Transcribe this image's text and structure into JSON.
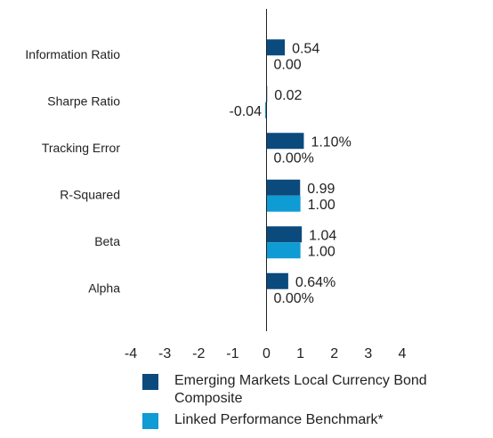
{
  "chart_data": {
    "type": "barh",
    "categories": [
      "Information Ratio",
      "Sharpe Ratio",
      "Tracking Error",
      "R-Squared",
      "Beta",
      "Alpha"
    ],
    "series": [
      {
        "name": "Emerging Markets Local Currency Bond Composite",
        "color": "#0b4a7d",
        "values": [
          0.54,
          0.02,
          1.1,
          0.99,
          1.04,
          0.64
        ],
        "value_labels": [
          "0.54",
          "0.02",
          "1.10%",
          "0.99",
          "1.04",
          "0.64%"
        ]
      },
      {
        "name": "Linked Performance Benchmark*",
        "color": "#0f9bd3",
        "values": [
          0.0,
          -0.04,
          0.0,
          1.0,
          1.0,
          0.0
        ],
        "value_labels": [
          "0.00",
          "-0.04",
          "0.00%",
          "1.00",
          "1.00",
          "0.00%"
        ]
      }
    ],
    "xlim": [
      -4,
      4
    ],
    "xticks": [
      -4,
      -3,
      -2,
      -1,
      0,
      1,
      2,
      3,
      4
    ]
  }
}
